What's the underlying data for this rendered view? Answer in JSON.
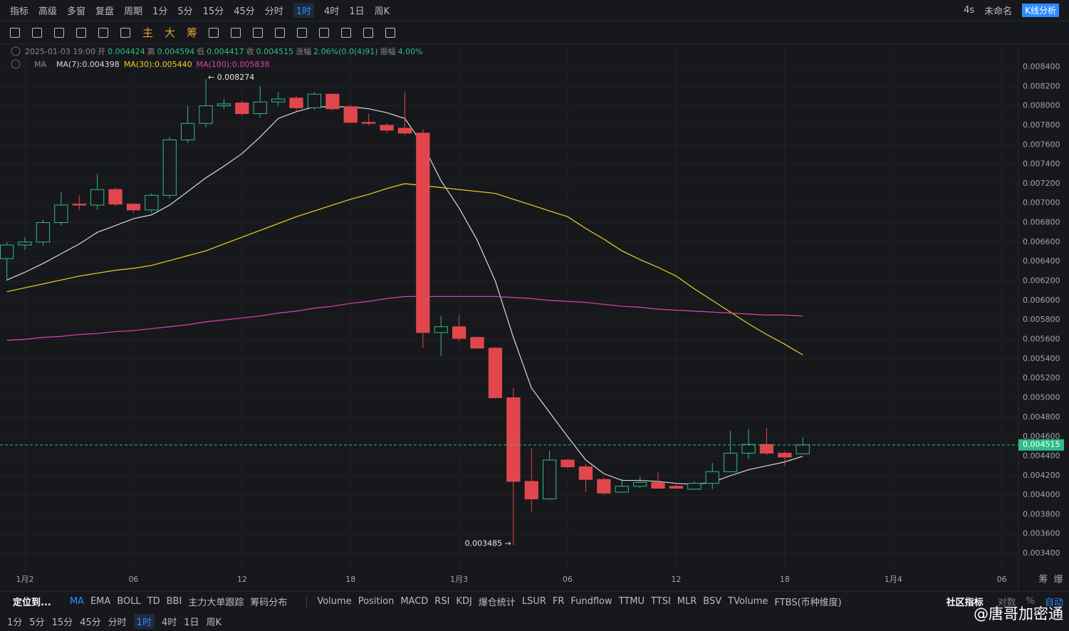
{
  "ui": {
    "top": {
      "left": [
        "指标",
        "高级",
        "多窗",
        "复盘"
      ],
      "period": "周期",
      "intervals": [
        "1分",
        "5分",
        "15分",
        "45分",
        "分时",
        "1时",
        "4时",
        "1日",
        "周K"
      ],
      "selected": 5,
      "right": [
        "4s",
        "未命名",
        "K线分析"
      ]
    },
    "drawing": {
      "labels": [
        "主",
        "大",
        "筹"
      ]
    },
    "indicators": {
      "locate": "定位到...",
      "main": [
        "MA",
        "EMA",
        "BOLL",
        "TD",
        "BBI",
        "主力大单跟踪",
        "筹码分布"
      ],
      "sub": [
        "Volume",
        "Position",
        "MACD",
        "RSI",
        "KDJ",
        "爆仓统计",
        "LSUR",
        "FR",
        "Fundflow",
        "TTMU",
        "TTSI",
        "MLR",
        "BSV",
        "TVolume",
        "FTBS(币种维度)"
      ],
      "right": [
        "社区指标",
        "对数",
        "%",
        "自动"
      ]
    },
    "bottom_intervals": [
      "1分",
      "5分",
      "15分",
      "45分",
      "分时",
      "1时",
      "4时",
      "1日",
      "周K"
    ],
    "bottom_selected": 5,
    "watermark": "@唐哥加密通"
  },
  "chart_data": {
    "type": "candlestick",
    "info": {
      "date": "2025-01-03 19:00",
      "open_label": "开",
      "high_label": "高",
      "low_label": "低",
      "close_label": "收",
      "change_label": "涨幅",
      "change": "2.06%(0.0(4)91)",
      "amplitude_label": "振幅",
      "amplitude": "4.00%"
    },
    "indicator": "MA",
    "up_color": "#2ebd85",
    "down_color": "#e0474c",
    "x": [
      -1,
      0,
      1,
      2,
      3,
      4,
      5,
      6,
      7,
      8,
      9,
      10,
      11,
      12,
      13,
      14,
      15,
      16,
      17,
      18,
      19,
      20,
      21,
      22,
      23,
      24,
      25,
      26,
      27,
      28,
      29,
      30,
      31,
      32,
      33,
      34,
      35,
      36,
      37,
      38,
      39,
      40,
      41,
      42,
      43
    ],
    "open": [
      0.00643,
      0.00657,
      0.0066,
      0.0068,
      0.00699,
      0.00698,
      0.00714,
      0.00699,
      0.00693,
      0.00708,
      0.00765,
      0.00782,
      0.008,
      0.00803,
      0.00792,
      0.00804,
      0.00808,
      0.00798,
      0.00812,
      0.00799,
      0.00783,
      0.0078,
      0.00777,
      0.00772,
      0.00567,
      0.00573,
      0.00562,
      0.00551,
      0.005,
      0.00414,
      0.00396,
      0.00436,
      0.00429,
      0.00416,
      0.00403,
      0.00409,
      0.00413,
      0.00409,
      0.00406,
      0.00412,
      0.00424,
      0.00443,
      0.00452,
      0.00443,
      0.004424
    ],
    "high": [
      0.0066,
      0.00665,
      0.00683,
      0.00711,
      0.00708,
      0.0073,
      0.00716,
      0.007,
      0.0071,
      0.00768,
      0.008,
      0.008274,
      0.00807,
      0.00805,
      0.0082,
      0.00814,
      0.0081,
      0.00814,
      0.00813,
      0.00801,
      0.00792,
      0.00782,
      0.00815,
      0.00776,
      0.00584,
      0.00585,
      0.00563,
      0.00552,
      0.0051,
      0.00448,
      0.00446,
      0.00437,
      0.00432,
      0.00418,
      0.00417,
      0.00419,
      0.00423,
      0.00411,
      0.00414,
      0.00433,
      0.00466,
      0.00468,
      0.00469,
      0.00445,
      0.004594
    ],
    "low": [
      0.0062,
      0.00652,
      0.00656,
      0.00677,
      0.00693,
      0.00693,
      0.00697,
      0.0069,
      0.0069,
      0.00705,
      0.00762,
      0.00778,
      0.00797,
      0.0079,
      0.00788,
      0.008,
      0.00795,
      0.00796,
      0.00795,
      0.00782,
      0.0078,
      0.00772,
      0.0077,
      0.00551,
      0.00543,
      0.00558,
      0.0055,
      0.00499,
      0.003485,
      0.00383,
      0.00395,
      0.00427,
      0.00403,
      0.004,
      0.00402,
      0.00407,
      0.00406,
      0.00406,
      0.00405,
      0.00406,
      0.00423,
      0.00437,
      0.00441,
      0.0043,
      0.004417
    ],
    "close": [
      0.00657,
      0.0066,
      0.0068,
      0.00698,
      0.00698,
      0.00714,
      0.00699,
      0.00693,
      0.00708,
      0.00765,
      0.00782,
      0.008,
      0.00802,
      0.00792,
      0.00804,
      0.00807,
      0.00798,
      0.00812,
      0.00797,
      0.00783,
      0.00782,
      0.00775,
      0.00772,
      0.00567,
      0.00573,
      0.00561,
      0.00551,
      0.005,
      0.00414,
      0.00396,
      0.00436,
      0.00429,
      0.00416,
      0.00402,
      0.00409,
      0.00413,
      0.00407,
      0.00407,
      0.00412,
      0.00424,
      0.00443,
      0.00452,
      0.00443,
      0.00439,
      0.004515
    ],
    "series": [
      {
        "name": "MA(7):0.004398",
        "color": "#d9d9d9",
        "values": [
          0.00621,
          0.00629,
          0.00638,
          0.00648,
          0.00658,
          0.0067,
          0.00677,
          0.00684,
          0.00688,
          0.00698,
          0.00712,
          0.00726,
          0.00738,
          0.00751,
          0.00768,
          0.00787,
          0.00794,
          0.00799,
          0.00799,
          0.00799,
          0.00797,
          0.00793,
          0.00787,
          0.0076,
          0.00723,
          0.00695,
          0.00662,
          0.0062,
          0.00562,
          0.0051,
          0.00485,
          0.0046,
          0.00436,
          0.00422,
          0.00415,
          0.00415,
          0.00414,
          0.00412,
          0.00411,
          0.00413,
          0.0042,
          0.00426,
          0.0043,
          0.00434,
          0.004398
        ]
      },
      {
        "name": "MA(30):0.005440",
        "color": "#f0d020",
        "values": [
          0.00609,
          0.00613,
          0.00617,
          0.00621,
          0.00625,
          0.00628,
          0.00631,
          0.00633,
          0.00636,
          0.00641,
          0.00646,
          0.00651,
          0.00658,
          0.00665,
          0.00672,
          0.00679,
          0.00686,
          0.00692,
          0.00698,
          0.00704,
          0.00709,
          0.00715,
          0.0072,
          0.00718,
          0.00716,
          0.00714,
          0.00712,
          0.0071,
          0.00704,
          0.00698,
          0.00692,
          0.00686,
          0.00674,
          0.00663,
          0.00651,
          0.00642,
          0.00634,
          0.00625,
          0.00612,
          0.006,
          0.00588,
          0.00576,
          0.00565,
          0.00555,
          0.00544
        ]
      },
      {
        "name": "MA(100):0.005838",
        "color": "#e040b0",
        "values": [
          0.00559,
          0.0056,
          0.00562,
          0.00563,
          0.00565,
          0.00566,
          0.00568,
          0.00569,
          0.00571,
          0.00573,
          0.00575,
          0.00578,
          0.0058,
          0.00582,
          0.00584,
          0.00587,
          0.00589,
          0.00592,
          0.00594,
          0.00597,
          0.00599,
          0.00602,
          0.00604,
          0.00604,
          0.00604,
          0.00604,
          0.00604,
          0.00604,
          0.00603,
          0.00602,
          0.006,
          0.00599,
          0.00598,
          0.00596,
          0.00594,
          0.00593,
          0.00591,
          0.0059,
          0.00589,
          0.00588,
          0.00587,
          0.00586,
          0.00585,
          0.00585,
          0.00584
        ]
      }
    ],
    "annotations": [
      "← 0.008274",
      "0.003485 →"
    ],
    "xlim": [
      -1.38,
      54.92
    ],
    "xticks": [
      {
        "value": 0,
        "label": "1月2"
      },
      {
        "value": 6,
        "label": "06"
      },
      {
        "value": 12,
        "label": "12"
      },
      {
        "value": 18,
        "label": "18"
      },
      {
        "value": 24,
        "label": "1月3"
      },
      {
        "value": 30,
        "label": "06"
      },
      {
        "value": 36,
        "label": "12"
      },
      {
        "value": 42,
        "label": "18"
      },
      {
        "value": 48,
        "label": "1月4"
      },
      {
        "value": 54,
        "label": "06"
      }
    ],
    "axis_extra": [
      "筹",
      "爆"
    ],
    "ylim": [
      0.003232,
      0.008634
    ],
    "yticks": [
      {
        "value": 0.0034,
        "label": "0.003400"
      },
      {
        "value": 0.0036,
        "label": "0.003600"
      },
      {
        "value": 0.0038,
        "label": "0.003800"
      },
      {
        "value": 0.004,
        "label": "0.004000"
      },
      {
        "value": 0.0042,
        "label": "0.004200"
      },
      {
        "value": 0.0044,
        "label": "0.004400"
      },
      {
        "value": 0.0046,
        "label": "0.004600"
      },
      {
        "value": 0.0048,
        "label": "0.004800"
      },
      {
        "value": 0.005,
        "label": "0.005000"
      },
      {
        "value": 0.0052,
        "label": "0.005200"
      },
      {
        "value": 0.0054,
        "label": "0.005400"
      },
      {
        "value": 0.0056,
        "label": "0.005600"
      },
      {
        "value": 0.0058,
        "label": "0.005800"
      },
      {
        "value": 0.006,
        "label": "0.006000"
      },
      {
        "value": 0.0062,
        "label": "0.006200"
      },
      {
        "value": 0.0064,
        "label": "0.006400"
      },
      {
        "value": 0.0066,
        "label": "0.006600"
      },
      {
        "value": 0.0068,
        "label": "0.006800"
      },
      {
        "value": 0.007,
        "label": "0.007000"
      },
      {
        "value": 0.0072,
        "label": "0.007200"
      },
      {
        "value": 0.0074,
        "label": "0.007400"
      },
      {
        "value": 0.0076,
        "label": "0.007600"
      },
      {
        "value": 0.0078,
        "label": "0.007800"
      },
      {
        "value": 0.008,
        "label": "0.008000"
      },
      {
        "value": 0.0082,
        "label": "0.008200"
      },
      {
        "value": 0.0084,
        "label": "0.008400"
      }
    ],
    "grid": true
  }
}
